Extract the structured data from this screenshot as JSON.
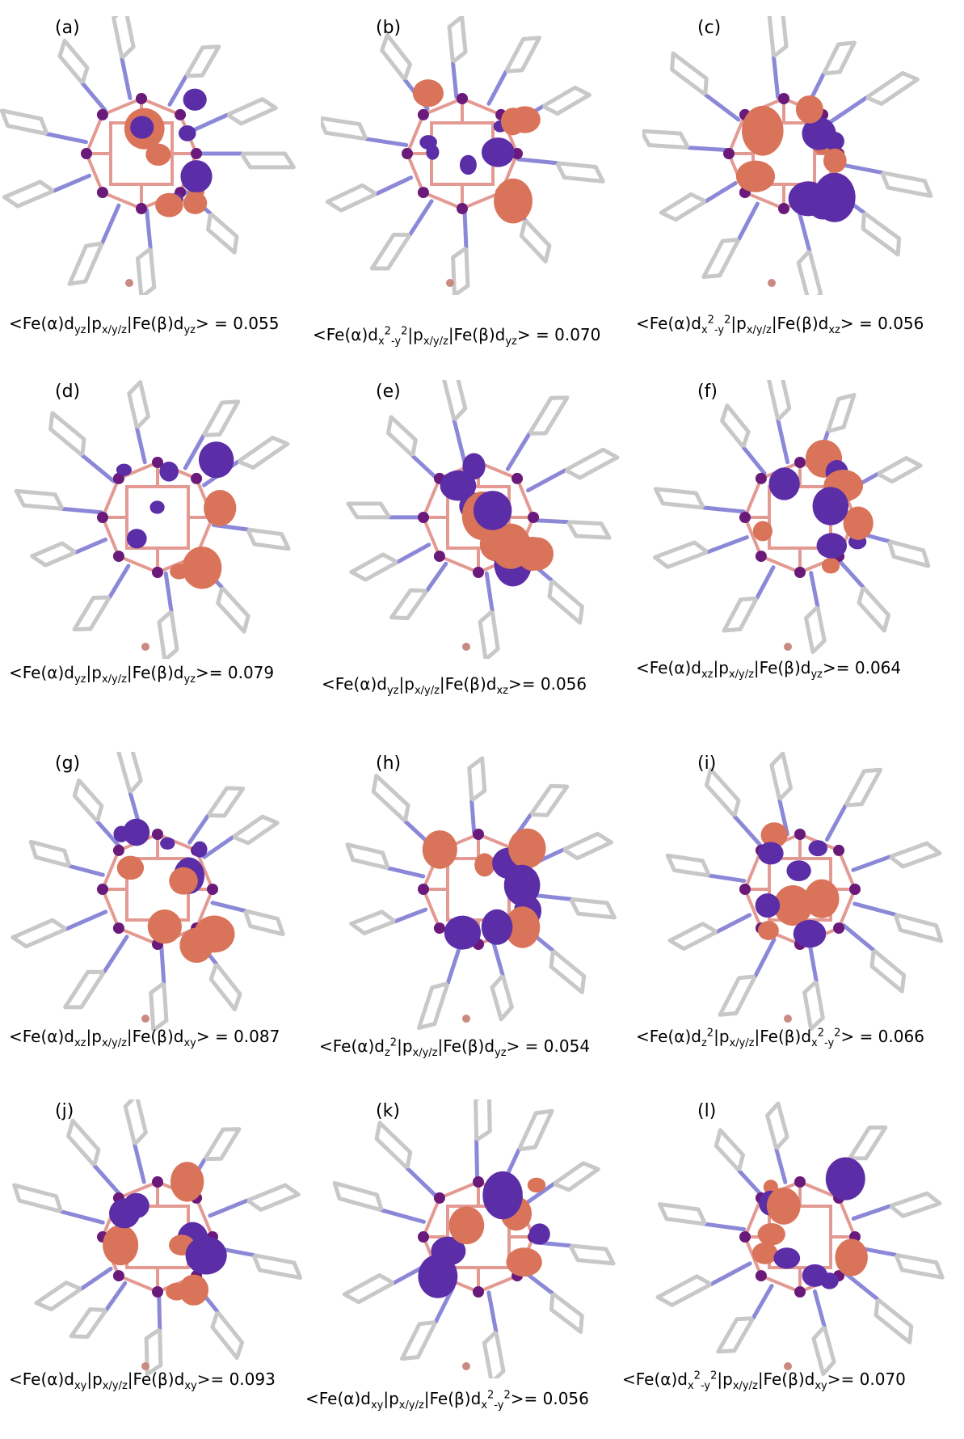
{
  "panels": [
    {
      "label": "(a)",
      "caption": [
        "<Fe(α)d",
        {
          "sub": "yz"
        },
        "|p",
        {
          "sub": "x/y/z"
        },
        "|Fe(β)d",
        {
          "sub": "yz"
        },
        "> = 0.055"
      ]
    },
    {
      "label": "(b)",
      "caption": [
        "<Fe(α)d",
        {
          "sub": "x"
        },
        {
          "sup": "2"
        },
        {
          "sub": "-y"
        },
        {
          "sup": "2"
        },
        "|p",
        {
          "sub": "x/y/z"
        },
        "|Fe(β)d",
        {
          "sub": "yz"
        },
        "> = 0.070"
      ]
    },
    {
      "label": "(c)",
      "caption": [
        "<Fe(α)d",
        {
          "sub": "x"
        },
        {
          "sup": "2"
        },
        {
          "sub": "-y"
        },
        {
          "sup": "2"
        },
        "|p",
        {
          "sub": "x/y/z"
        },
        "|Fe(β)d",
        {
          "sub": "xz"
        },
        "> = 0.056"
      ]
    },
    {
      "label": "(d)",
      "caption": [
        "<Fe(α)d",
        {
          "sub": "yz"
        },
        "|p",
        {
          "sub": "x/y/z"
        },
        "|Fe(β)d",
        {
          "sub": "yz"
        },
        ">= 0.079"
      ]
    },
    {
      "label": "(e)",
      "caption": [
        "<Fe(α)d",
        {
          "sub": "yz"
        },
        "|p",
        {
          "sub": "x/y/z"
        },
        "|Fe(β)d",
        {
          "sub": "xz"
        },
        ">= 0.056"
      ]
    },
    {
      "label": "(f)",
      "caption": [
        "<Fe(α)d",
        {
          "sub": "xz"
        },
        "|p",
        {
          "sub": "x/y/z"
        },
        "|Fe(β)d",
        {
          "sub": "yz"
        },
        ">= 0.064"
      ]
    },
    {
      "label": "(g)",
      "caption": [
        "<Fe(α)d",
        {
          "sub": "xz"
        },
        "|p",
        {
          "sub": "x/y/z"
        },
        "|Fe(β)d",
        {
          "sub": "xy"
        },
        "> = 0.087"
      ]
    },
    {
      "label": "(h)",
      "caption": [
        "<Fe(α)d",
        {
          "sub": "z"
        },
        {
          "sup": "2"
        },
        "|p",
        {
          "sub": "x/y/z"
        },
        "|Fe(β)d",
        {
          "sub": "yz"
        },
        "> = 0.054"
      ]
    },
    {
      "label": "(i)",
      "caption": [
        "<Fe(α)d",
        {
          "sub": "z"
        },
        {
          "sup": "2"
        },
        "|p",
        {
          "sub": "x/y/z"
        },
        "|Fe(β)d",
        {
          "sub": "x"
        },
        {
          "sup": "2"
        },
        {
          "sub": "-y"
        },
        {
          "sup": "2"
        },
        "> = 0.066"
      ]
    },
    {
      "label": "(j)",
      "caption": [
        "<Fe(α)d",
        {
          "sub": "xy"
        },
        "|p",
        {
          "sub": "x/y/z"
        },
        "|Fe(β)d",
        {
          "sub": "xy"
        },
        ">= 0.093"
      ]
    },
    {
      "label": "(k)",
      "caption": [
        "<Fe(α)d",
        {
          "sub": "xy"
        },
        "|p",
        {
          "sub": "x/y/z"
        },
        "|Fe(β)d",
        {
          "sub": "x"
        },
        {
          "sup": "2"
        },
        {
          "sub": "-y"
        },
        {
          "sup": "2"
        },
        ">= 0.056"
      ]
    },
    {
      "label": "(l)",
      "caption": [
        "<Fe(α)d",
        {
          "sub": "x"
        },
        {
          "sup": "2"
        },
        {
          "sub": "-y"
        },
        {
          "sup": "2"
        },
        "|p",
        {
          "sub": "x/y/z"
        },
        "|Fe(β)d",
        {
          "sub": "xy"
        },
        ">= 0.070"
      ]
    }
  ]
}
